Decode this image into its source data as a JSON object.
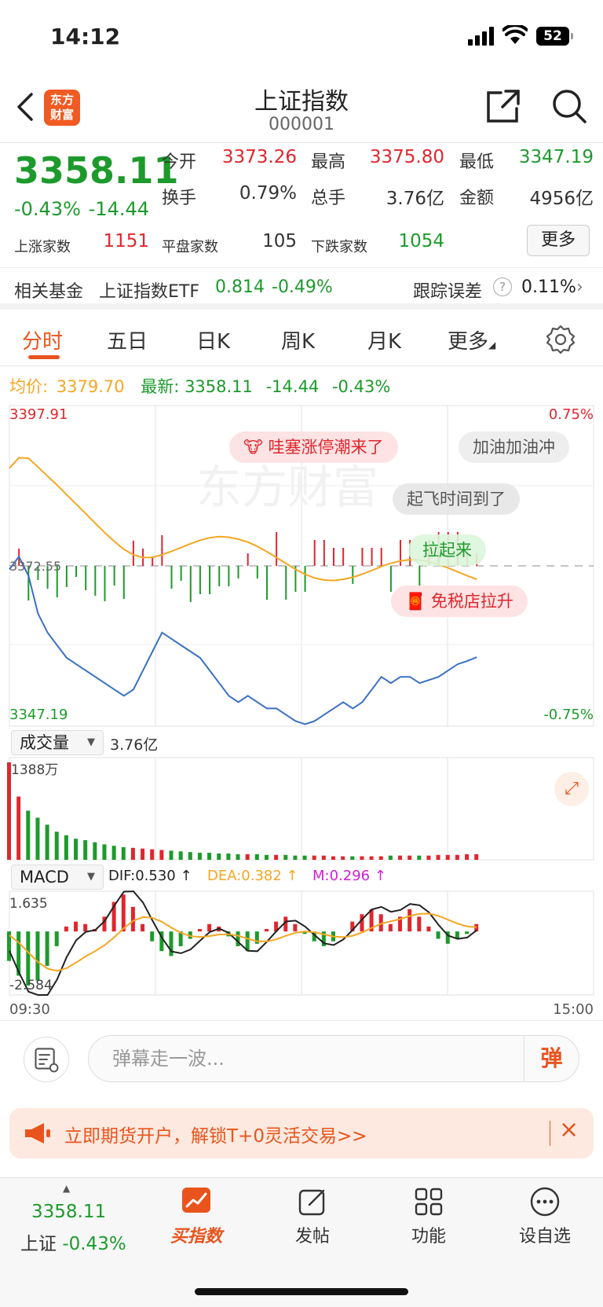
{
  "status_bar": {
    "time": "14:12",
    "battery": "52"
  },
  "header": {
    "logo_line1": "东方",
    "logo_line2": "财富",
    "title": "上证指数",
    "code": "000001"
  },
  "quote": {
    "price": "3358.11",
    "change_pct": "-0.43%",
    "change": "-14.44",
    "open_label": "今开",
    "open": "3373.26",
    "high_label": "最高",
    "high": "3375.80",
    "low_label": "最低",
    "low": "3347.19",
    "turnover_label": "换手",
    "turnover": "0.79%",
    "volume_label": "总手",
    "volume": "3.76亿",
    "amount_label": "金额",
    "amount": "4956亿",
    "up_label": "上涨家数",
    "up": "1151",
    "flat_label": "平盘家数",
    "flat": "105",
    "down_label": "下跌家数",
    "down": "1054",
    "more_label": "更多"
  },
  "fund": {
    "label": "相关基金",
    "name": "上证指数ETF",
    "price": "0.814",
    "pct": "-0.49%",
    "track_label": "跟踪误差",
    "track_value": "0.11%"
  },
  "tabs": [
    {
      "label": "分时"
    },
    {
      "label": "五日"
    },
    {
      "label": "日K"
    },
    {
      "label": "周K"
    },
    {
      "label": "月K"
    },
    {
      "label": "更多"
    }
  ],
  "avg": {
    "avg_label": "均价:",
    "avg_value": "3379.70",
    "latest_label": "最新:",
    "latest_value": "3358.11",
    "change": "-14.44",
    "pct": "-0.43%"
  },
  "chart_labels": {
    "top_price": "3397.91",
    "top_pct": "0.75%",
    "mid_price": "3372.55",
    "bottom_price": "3347.19",
    "bottom_pct": "-0.75%",
    "start_time": "09:30",
    "end_time": "15:00"
  },
  "bubbles": [
    "哇塞涨停潮来了",
    "加油加油冲",
    "起飞时间到了",
    "拉起来",
    "免税店拉升"
  ],
  "watermark": "东方财富",
  "volume": {
    "selector": "成交量",
    "total": "3.76亿",
    "max_label": "1388万"
  },
  "macd": {
    "selector": "MACD",
    "dif": "DIF:0.530 ↑",
    "dea": "DEA:0.382 ↑",
    "m": "M:0.296 ↑",
    "top": "1.635",
    "bottom": "-2.584"
  },
  "danmu": {
    "placeholder": "弹幕走一波...",
    "send_label": "弹"
  },
  "promo": {
    "text": "立即期货开户，解锁T+0灵活交易>>"
  },
  "bottom_nav": {
    "index_price": "3358.11",
    "index_name": "上证",
    "index_pct": "-0.43%",
    "items": [
      {
        "label": "买指数"
      },
      {
        "label": "发帖"
      },
      {
        "label": "功能"
      },
      {
        "label": "设自选"
      }
    ]
  },
  "colors": {
    "accent": "#e9541d",
    "up": "#e0262e",
    "down": "#1d9a2c",
    "price_line": "#3a6fc4",
    "avg_line": "#f5a623"
  },
  "chart_data": [
    {
      "type": "line",
      "title": "",
      "ylim": [
        3347.19,
        3397.91
      ],
      "series": [
        {
          "values": [
            3372,
            3374,
            3371,
            3365,
            3362,
            3360,
            3358,
            3357,
            3356,
            3355,
            3354,
            3353,
            3352,
            3353,
            3356,
            3359,
            3362,
            3361,
            3360,
            3359,
            3358,
            3356,
            3354,
            3352,
            3351,
            3352,
            3351,
            3350,
            3350,
            3349,
            3348,
            3347.5,
            3348,
            3349,
            3350,
            3351,
            3350,
            3351,
            3353,
            3355,
            3354,
            3355,
            3355,
            3354,
            3354.5,
            3355,
            3356,
            3357,
            3357.5,
            3358.11
          ]
        }
      ]
    },
    {
      "type": "bar",
      "title": "",
      "values": [
        1388,
        900,
        700,
        600,
        500,
        400,
        350,
        300,
        280,
        250,
        220,
        200,
        180,
        170,
        160,
        150,
        140,
        130,
        120,
        110,
        100,
        100,
        90,
        90,
        80,
        80,
        80,
        70,
        70,
        70,
        60,
        60,
        60,
        60,
        50,
        50,
        50,
        50,
        50,
        50,
        60,
        60,
        60,
        60,
        60,
        70,
        70,
        70,
        80,
        80
      ]
    },
    {
      "type": "bar",
      "title": "",
      "ylim": [
        -2.584,
        1.635
      ],
      "values": [
        -1.2,
        -1.8,
        -2.2,
        -2.0,
        -1.4,
        -0.6,
        0.2,
        0.4,
        0.3,
        0.1,
        0.6,
        1.2,
        1.5,
        1.0,
        0.3,
        -0.4,
        -0.8,
        -1.0,
        -0.6,
        -0.3,
        0.1,
        0.3,
        0.2,
        -0.2,
        -0.6,
        -0.8,
        -0.5,
        0.1,
        0.4,
        0.6,
        0.3,
        -0.1,
        -0.4,
        -0.6,
        -0.4,
        0.0,
        0.4,
        0.7,
        0.9,
        0.7,
        0.3,
        0.6,
        0.9,
        0.6,
        0.2,
        -0.3,
        -0.5,
        -0.3,
        -0.1,
        0.3
      ]
    }
  ]
}
